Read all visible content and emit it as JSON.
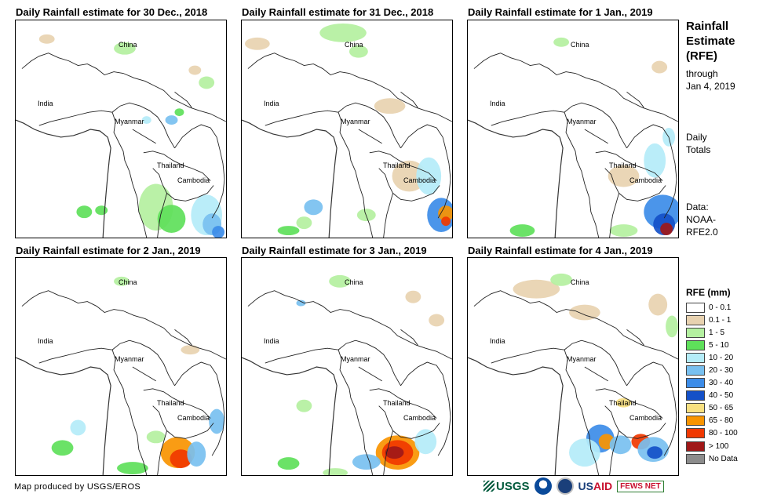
{
  "panels": [
    {
      "title": "Daily Rainfall estimate for 30 Dec., 2018"
    },
    {
      "title": "Daily Rainfall estimate for 31 Dec., 2018"
    },
    {
      "title": "Daily Rainfall estimate for 1 Jan., 2019"
    },
    {
      "title": "Daily Rainfall estimate for 2 Jan., 2019"
    },
    {
      "title": "Daily Rainfall estimate for 3 Jan., 2019"
    },
    {
      "title": "Daily Rainfall estimate for 4 Jan., 2019"
    }
  ],
  "countries": {
    "china": "China",
    "india": "India",
    "myanmar": "Myanmar",
    "thailand": "Thailand",
    "cambodia": "Cambodia"
  },
  "sidebar": {
    "title_line1": "Rainfall",
    "title_line2": "Estimate",
    "title_line3": "(RFE)",
    "through_line1": "through",
    "through_line2": "Jan 4, 2019",
    "daily_line1": "Daily",
    "daily_line2": "Totals",
    "data_line1": "Data:",
    "data_line2": "NOAA-",
    "data_line3": "RFE2.0"
  },
  "legend": {
    "title": "RFE (mm)",
    "items": [
      {
        "label": "0 - 0.1",
        "color": "#ffffff"
      },
      {
        "label": "0.1 - 1",
        "color": "#e8d2b0"
      },
      {
        "label": "1 - 5",
        "color": "#b4f0a0"
      },
      {
        "label": "5 - 10",
        "color": "#5ee05a"
      },
      {
        "label": "10 - 20",
        "color": "#b4ecf8"
      },
      {
        "label": "20 - 30",
        "color": "#78c0f0"
      },
      {
        "label": "30 - 40",
        "color": "#3c8ce8"
      },
      {
        "label": "40 - 50",
        "color": "#1450c8"
      },
      {
        "label": "50 - 65",
        "color": "#f8e080"
      },
      {
        "label": "65 - 80",
        "color": "#f89400"
      },
      {
        "label": "80 - 100",
        "color": "#f03800"
      },
      {
        "label": "> 100",
        "color": "#a01818"
      },
      {
        "label": "No Data",
        "color": "#8c8c8c"
      }
    ]
  },
  "footer": {
    "credit": "Map produced by USGS/EROS",
    "logo_usgs": "USGS",
    "logo_usaid_a": "US",
    "logo_usaid_b": "AID",
    "logo_fews": "FEWS NET"
  }
}
